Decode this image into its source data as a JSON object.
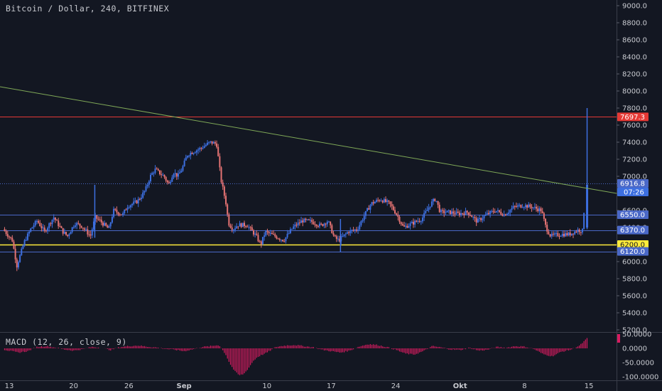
{
  "header": {
    "title": "Bitcoin / Dollar, 240, BITFINEX"
  },
  "macd": {
    "label": "MACD (12, 26, close, 9)",
    "ticks": [
      "50.0000",
      "0.0000",
      "-50.0000",
      "-100.0000"
    ],
    "tick_values": [
      50,
      0,
      -50,
      -100
    ],
    "ylim": [
      -125,
      60
    ]
  },
  "colors": {
    "background": "#131722",
    "up": "#3d6fe0",
    "down": "#e57373",
    "trendline": "#7fa857",
    "resistance": "#e53935",
    "support": "#ffeb3b",
    "level": "#4a68c7",
    "histogram": "#d81b60",
    "axis_text": "#c8cad0"
  },
  "chart_data": {
    "type": "candlestick",
    "title": "Bitcoin / Dollar, 240, BITFINEX",
    "ylim": [
      5200,
      9100
    ],
    "y_ticks": [
      "9000.0",
      "8800.0",
      "8600.0",
      "8400.0",
      "8200.0",
      "8000.0",
      "7800.0",
      "7600.0",
      "7400.0",
      "7200.0",
      "7000.0",
      "6800.0",
      "6600.0",
      "6400.0",
      "6200.0",
      "6000.0",
      "5800.0",
      "5600.0",
      "5400.0",
      "5200.0"
    ],
    "y_tick_values": [
      9000,
      8800,
      8600,
      8400,
      8200,
      8000,
      7800,
      7600,
      7400,
      7200,
      7000,
      6800,
      6600,
      6400,
      6200,
      6000,
      5800,
      5600,
      5400,
      5200
    ],
    "x_ticks": [
      "13",
      "20",
      "26",
      "Sep",
      "10",
      "17",
      "24",
      "Okt",
      "8",
      "15"
    ],
    "x_tick_positions": [
      0,
      7,
      13,
      19,
      28,
      35,
      42,
      49,
      56,
      63
    ],
    "x_range": [
      -1,
      66
    ],
    "price_path": [
      [
        -0.5,
        6380
      ],
      [
        0.5,
        6250
      ],
      [
        1.0,
        5950
      ],
      [
        1.8,
        6230
      ],
      [
        2.5,
        6380
      ],
      [
        3.2,
        6480
      ],
      [
        4,
        6350
      ],
      [
        5,
        6520
      ],
      [
        6,
        6350
      ],
      [
        6.5,
        6300
      ],
      [
        7.3,
        6450
      ],
      [
        8,
        6420
      ],
      [
        9,
        6300
      ],
      [
        9.5,
        6520
      ],
      [
        10,
        6480
      ],
      [
        11,
        6380
      ],
      [
        11.5,
        6600
      ],
      [
        12.5,
        6550
      ],
      [
        13,
        6650
      ],
      [
        14,
        6700
      ],
      [
        14.5,
        6760
      ],
      [
        15,
        6850
      ],
      [
        15.5,
        7000
      ],
      [
        16,
        7080
      ],
      [
        17,
        7000
      ],
      [
        17.5,
        6900
      ],
      [
        18,
        7050
      ],
      [
        18.5,
        7000
      ],
      [
        19,
        7100
      ],
      [
        19.5,
        7250
      ],
      [
        20,
        7280
      ],
      [
        21,
        7330
      ],
      [
        22,
        7400
      ],
      [
        22.7,
        7380
      ],
      [
        23.2,
        6950
      ],
      [
        23.7,
        6700
      ],
      [
        24.0,
        6450
      ],
      [
        24.5,
        6380
      ],
      [
        25,
        6430
      ],
      [
        26,
        6430
      ],
      [
        27,
        6300
      ],
      [
        27.5,
        6200
      ],
      [
        28,
        6350
      ],
      [
        29,
        6300
      ],
      [
        30,
        6250
      ],
      [
        31,
        6400
      ],
      [
        32,
        6480
      ],
      [
        33,
        6470
      ],
      [
        34,
        6420
      ],
      [
        34.8,
        6480
      ],
      [
        35.5,
        6280
      ],
      [
        36,
        6250
      ],
      [
        37,
        6350
      ],
      [
        38,
        6380
      ],
      [
        38.8,
        6550
      ],
      [
        39.5,
        6680
      ],
      [
        40.5,
        6730
      ],
      [
        41.5,
        6680
      ],
      [
        42.3,
        6550
      ],
      [
        43.0,
        6400
      ],
      [
        44,
        6450
      ],
      [
        45,
        6500
      ],
      [
        46,
        6680
      ],
      [
        46.5,
        6740
      ],
      [
        47,
        6580
      ],
      [
        48,
        6580
      ],
      [
        49,
        6560
      ],
      [
        50,
        6580
      ],
      [
        51,
        6470
      ],
      [
        52,
        6550
      ],
      [
        53,
        6600
      ],
      [
        54,
        6550
      ],
      [
        55,
        6640
      ],
      [
        56,
        6660
      ],
      [
        57,
        6640
      ],
      [
        58,
        6600
      ],
      [
        58.5,
        6400
      ],
      [
        59,
        6300
      ],
      [
        60,
        6320
      ],
      [
        61,
        6320
      ],
      [
        62,
        6370
      ],
      [
        62.5,
        6360
      ],
      [
        62.8,
        6900
      ]
    ],
    "spikes": [
      {
        "x": 9.3,
        "high": 6900,
        "low": 6280
      },
      {
        "x": 36.0,
        "high": 6500,
        "low": 6110
      },
      {
        "x": 62.8,
        "high": 7800,
        "low": 6380
      }
    ],
    "horizontal_levels": [
      {
        "value": 7697.3,
        "label": "7697.3",
        "style": "solid",
        "color": "#e53935"
      },
      {
        "value": 6916.8,
        "label": "6916.8",
        "style": "dotted",
        "color": "#4a68c7"
      },
      {
        "value": 6550.0,
        "label": "6550.0",
        "style": "solid",
        "color": "#4a68c7"
      },
      {
        "value": 6370.0,
        "label": "6370.0",
        "style": "solid",
        "color": "#4a68c7"
      },
      {
        "value": 6200.0,
        "label": "6200.0",
        "style": "solid",
        "color": "#ffeb3b"
      },
      {
        "value": 6120.0,
        "label": "6120.0",
        "style": "solid",
        "color": "#4a68c7"
      }
    ],
    "countdown_label": "07:26",
    "trendline": {
      "x1": -1.0,
      "y1": 8050,
      "x2": 66,
      "y2": 6800
    },
    "macd_histogram": [
      [
        -0.5,
        -5
      ],
      [
        1,
        -15
      ],
      [
        2,
        -10
      ],
      [
        3,
        5
      ],
      [
        4,
        8
      ],
      [
        5,
        3
      ],
      [
        6,
        -4
      ],
      [
        7,
        -8
      ],
      [
        8,
        -3
      ],
      [
        9,
        5
      ],
      [
        10,
        2
      ],
      [
        11,
        -6
      ],
      [
        12,
        4
      ],
      [
        13,
        8
      ],
      [
        14,
        10
      ],
      [
        15,
        6
      ],
      [
        16,
        3
      ],
      [
        17,
        -2
      ],
      [
        18,
        -5
      ],
      [
        19,
        -10
      ],
      [
        20,
        -3
      ],
      [
        21,
        5
      ],
      [
        22,
        8
      ],
      [
        22.8,
        12
      ],
      [
        23.5,
        -20
      ],
      [
        24,
        -55
      ],
      [
        24.5,
        -80
      ],
      [
        25,
        -95
      ],
      [
        25.5,
        -90
      ],
      [
        26,
        -70
      ],
      [
        26.5,
        -45
      ],
      [
        27,
        -30
      ],
      [
        28,
        -15
      ],
      [
        29,
        5
      ],
      [
        30,
        10
      ],
      [
        31,
        12
      ],
      [
        32,
        8
      ],
      [
        33,
        4
      ],
      [
        34,
        -5
      ],
      [
        35,
        -10
      ],
      [
        36,
        -15
      ],
      [
        37,
        -8
      ],
      [
        38,
        6
      ],
      [
        39,
        15
      ],
      [
        40,
        12
      ],
      [
        41,
        5
      ],
      [
        42,
        -5
      ],
      [
        43,
        -18
      ],
      [
        44,
        -22
      ],
      [
        45,
        -10
      ],
      [
        46,
        8
      ],
      [
        47,
        3
      ],
      [
        48,
        -4
      ],
      [
        49,
        -6
      ],
      [
        50,
        2
      ],
      [
        51,
        -8
      ],
      [
        52,
        -5
      ],
      [
        53,
        5
      ],
      [
        54,
        2
      ],
      [
        55,
        8
      ],
      [
        56,
        6
      ],
      [
        57,
        -2
      ],
      [
        58,
        -20
      ],
      [
        59,
        -28
      ],
      [
        60,
        -12
      ],
      [
        61,
        -5
      ],
      [
        62,
        10
      ],
      [
        62.8,
        35
      ]
    ]
  }
}
